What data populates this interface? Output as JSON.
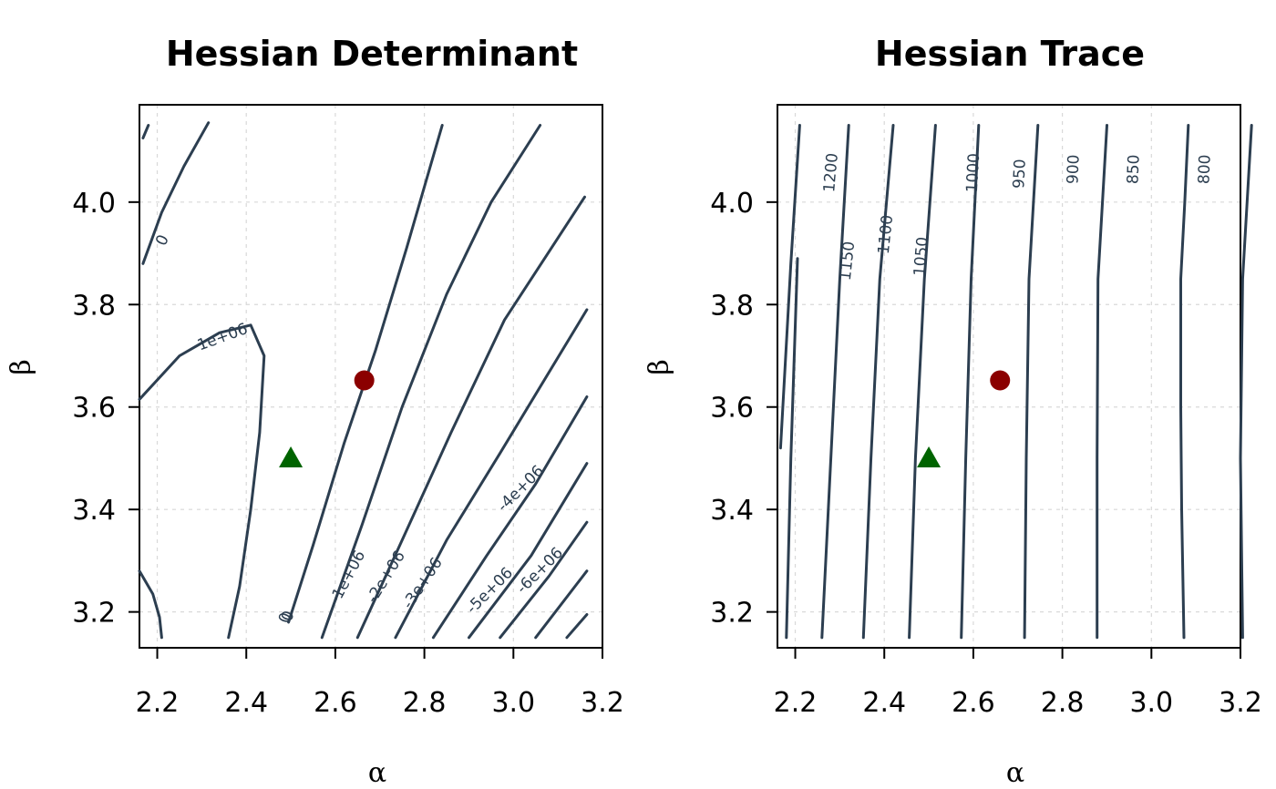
{
  "chart_data": [
    {
      "type": "contour",
      "title": "Hessian Determinant",
      "xlabel": "α",
      "ylabel": "β",
      "xlim": [
        2.16,
        3.2
      ],
      "ylim": [
        3.13,
        4.19
      ],
      "xticks": [
        "2.2",
        "2.4",
        "2.6",
        "2.8",
        "3.0",
        "3.2"
      ],
      "yticks": [
        "3.2",
        "3.4",
        "3.6",
        "3.8",
        "4.0"
      ],
      "grid": true,
      "levels": [
        {
          "label": "0",
          "points": [
            [
              2.168,
              4.125
            ],
            [
              2.18,
              4.15
            ]
          ]
        },
        {
          "label": "0",
          "points": [
            [
              2.168,
              3.88
            ],
            [
              2.21,
              3.98
            ],
            [
              2.26,
              4.07
            ],
            [
              2.315,
              4.155
            ]
          ]
        },
        {
          "label": "1e+06",
          "points": [
            [
              2.16,
              3.615
            ],
            [
              2.25,
              3.7
            ],
            [
              2.34,
              3.745
            ],
            [
              2.41,
              3.76
            ],
            [
              2.44,
              3.7
            ],
            [
              2.43,
              3.55
            ],
            [
              2.41,
              3.4
            ],
            [
              2.385,
              3.25
            ],
            [
              2.36,
              3.15
            ]
          ]
        },
        {
          "label": "",
          "points": [
            [
              2.16,
              3.28
            ],
            [
              2.19,
              3.235
            ],
            [
              2.205,
              3.19
            ],
            [
              2.21,
              3.15
            ]
          ]
        },
        {
          "label": "0",
          "points": [
            [
              2.495,
              3.18
            ],
            [
              2.55,
              3.33
            ],
            [
              2.62,
              3.53
            ],
            [
              2.69,
              3.71
            ],
            [
              2.76,
              3.91
            ],
            [
              2.84,
              4.15
            ]
          ]
        },
        {
          "label": "-1e+06",
          "points": [
            [
              2.57,
              3.15
            ],
            [
              2.66,
              3.37
            ],
            [
              2.75,
              3.6
            ],
            [
              2.85,
              3.82
            ],
            [
              2.95,
              4.0
            ],
            [
              3.06,
              4.15
            ]
          ]
        },
        {
          "label": "-2e+06",
          "points": [
            [
              2.65,
              3.15
            ],
            [
              2.75,
              3.34
            ],
            [
              2.86,
              3.55
            ],
            [
              2.98,
              3.77
            ],
            [
              3.16,
              4.01
            ]
          ]
        },
        {
          "label": "-3e+06",
          "points": [
            [
              2.735,
              3.15
            ],
            [
              2.85,
              3.34
            ],
            [
              2.97,
              3.51
            ],
            [
              3.165,
              3.79
            ]
          ]
        },
        {
          "label": "-4e+06",
          "points": [
            [
              2.82,
              3.15
            ],
            [
              2.94,
              3.31
            ],
            [
              3.05,
              3.45
            ],
            [
              3.165,
              3.62
            ]
          ]
        },
        {
          "label": "-5e+06",
          "points": [
            [
              2.9,
              3.15
            ],
            [
              3.04,
              3.31
            ],
            [
              3.165,
              3.49
            ]
          ]
        },
        {
          "label": "-6e+06",
          "points": [
            [
              2.97,
              3.15
            ],
            [
              3.08,
              3.27
            ],
            [
              3.165,
              3.375
            ]
          ]
        },
        {
          "label": "",
          "points": [
            [
              3.05,
              3.15
            ],
            [
              3.165,
              3.28
            ]
          ]
        },
        {
          "label": "",
          "points": [
            [
              3.12,
              3.15
            ],
            [
              3.165,
              3.195
            ]
          ]
        }
      ],
      "markers": [
        {
          "shape": "circle",
          "color": "#8b0000",
          "x": 2.665,
          "y": 3.652
        },
        {
          "shape": "triangle",
          "color": "#006400",
          "x": 2.5,
          "y": 3.5
        }
      ]
    },
    {
      "type": "contour",
      "title": "Hessian Trace",
      "xlabel": "α",
      "ylabel": "β",
      "xlim": [
        2.16,
        3.2
      ],
      "ylim": [
        3.13,
        4.19
      ],
      "xticks": [
        "2.2",
        "2.4",
        "2.6",
        "2.8",
        "3.0",
        "3.2"
      ],
      "yticks": [
        "3.2",
        "3.4",
        "3.6",
        "3.8",
        "4.0"
      ],
      "grid": true,
      "levels": [
        {
          "label": "",
          "points": [
            [
              2.167,
              3.52
            ],
            [
              2.19,
              3.88
            ],
            [
              2.21,
              4.15
            ]
          ]
        },
        {
          "label": "",
          "points": [
            [
              2.18,
              3.15
            ],
            [
              2.19,
              3.5
            ],
            [
              2.205,
              3.89
            ]
          ]
        },
        {
          "label": "1200",
          "points": [
            [
              2.26,
              3.15
            ],
            [
              2.28,
              3.5
            ],
            [
              2.3,
              3.85
            ],
            [
              2.32,
              4.15
            ]
          ]
        },
        {
          "label": "1150",
          "points": [
            [
              2.353,
              3.15
            ],
            [
              2.37,
              3.5
            ],
            [
              2.39,
              3.85
            ],
            [
              2.42,
              4.15
            ]
          ]
        },
        {
          "label": "1100",
          "points": [
            [
              2.456,
              3.15
            ],
            [
              2.47,
              3.5
            ],
            [
              2.49,
              3.85
            ],
            [
              2.515,
              4.15
            ]
          ]
        },
        {
          "label": "1050",
          "points": [
            [
              2.573,
              3.15
            ],
            [
              2.583,
              3.5
            ],
            [
              2.595,
              3.85
            ],
            [
              2.612,
              4.15
            ]
          ]
        },
        {
          "label": "1000",
          "points": [
            [
              2.715,
              3.15
            ],
            [
              2.719,
              3.5
            ],
            [
              2.725,
              3.85
            ],
            [
              2.745,
              4.15
            ]
          ]
        },
        {
          "label": "950",
          "points": [
            [
              2.878,
              3.15
            ],
            [
              2.878,
              3.5
            ],
            [
              2.88,
              3.85
            ],
            [
              2.9,
              4.15
            ]
          ]
        },
        {
          "label": "900",
          "points": [
            [
              3.073,
              3.15
            ],
            [
              3.068,
              3.4
            ],
            [
              3.066,
              3.6
            ],
            [
              3.066,
              3.85
            ],
            [
              3.075,
              4.0
            ],
            [
              3.083,
              4.15
            ]
          ]
        },
        {
          "label": "850",
          "points": []
        },
        {
          "label": "800",
          "points": []
        }
      ],
      "markers": [
        {
          "shape": "circle",
          "color": "#8b0000",
          "x": 2.66,
          "y": 3.652
        },
        {
          "shape": "triangle",
          "color": "#006400",
          "x": 2.5,
          "y": 3.5
        }
      ]
    }
  ]
}
